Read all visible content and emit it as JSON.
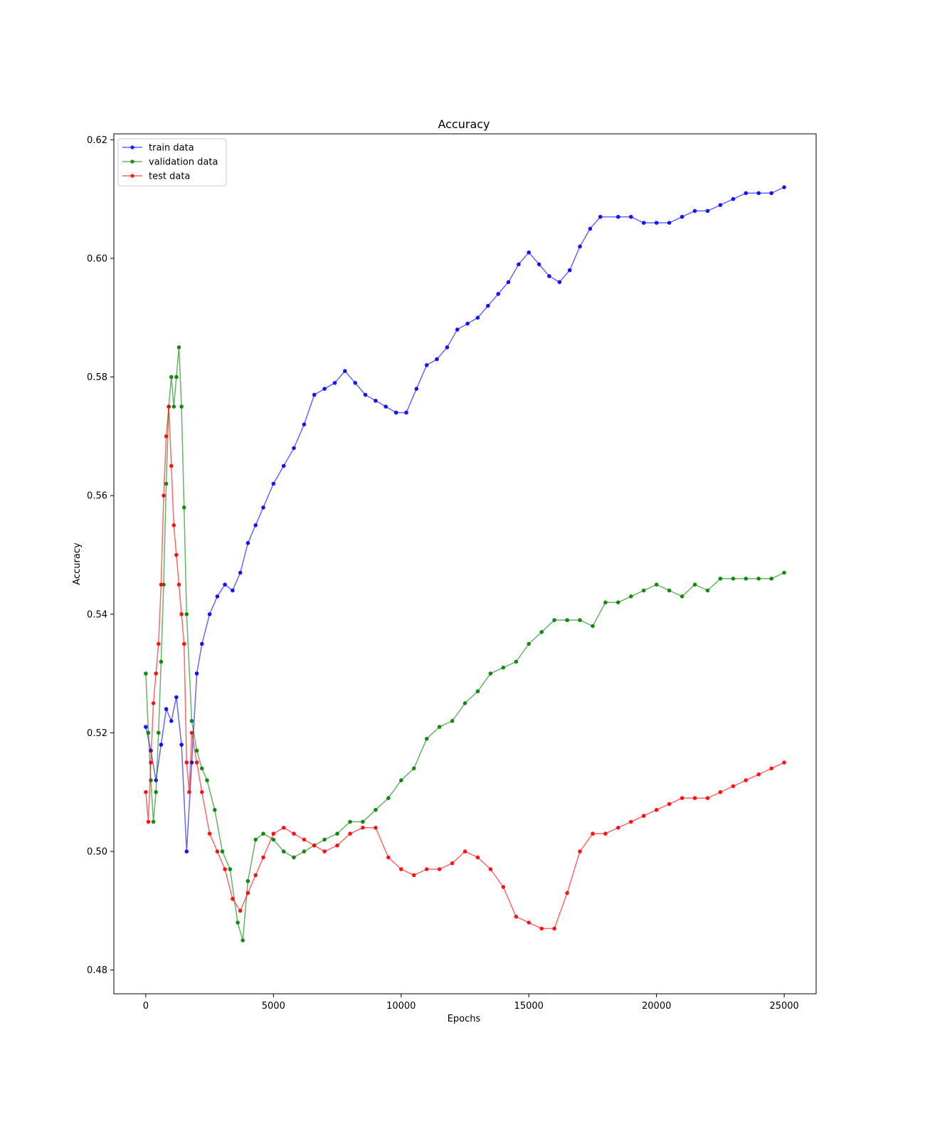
{
  "chart_data": {
    "type": "line",
    "title": "Accuracy",
    "xlabel": "Epochs",
    "ylabel": "Accuracy",
    "xlim": [
      -1250,
      26250
    ],
    "ylim": [
      0.476,
      0.621
    ],
    "xticks": [
      0,
      5000,
      10000,
      15000,
      20000,
      25000
    ],
    "xtick_labels": [
      "0",
      "5000",
      "10000",
      "15000",
      "20000",
      "25000"
    ],
    "yticks": [
      0.48,
      0.5,
      0.52,
      0.54,
      0.56,
      0.58,
      0.6,
      0.62
    ],
    "ytick_labels": [
      "0.48",
      "0.50",
      "0.52",
      "0.54",
      "0.56",
      "0.58",
      "0.60",
      "0.62"
    ],
    "grid": false,
    "legend_position": "upper-left",
    "series": [
      {
        "name": "train data",
        "color": "#0000ff",
        "x": [
          0,
          200,
          400,
          600,
          800,
          1000,
          1200,
          1400,
          1600,
          1800,
          2000,
          2200,
          2500,
          2800,
          3100,
          3400,
          3700,
          4000,
          4300,
          4600,
          5000,
          5400,
          5800,
          6200,
          6600,
          7000,
          7400,
          7800,
          8200,
          8600,
          9000,
          9400,
          9800,
          10200,
          10600,
          11000,
          11400,
          11800,
          12200,
          12600,
          13000,
          13400,
          13800,
          14200,
          14600,
          15000,
          15400,
          15800,
          16200,
          16600,
          17000,
          17400,
          17800,
          18500,
          19000,
          19500,
          20000,
          20500,
          21000,
          21500,
          22000,
          22500,
          23000,
          23500,
          24000,
          24500,
          25000
        ],
        "y": [
          0.521,
          0.517,
          0.512,
          0.518,
          0.524,
          0.522,
          0.526,
          0.518,
          0.5,
          0.515,
          0.53,
          0.535,
          0.54,
          0.543,
          0.545,
          0.544,
          0.547,
          0.552,
          0.555,
          0.558,
          0.562,
          0.565,
          0.568,
          0.572,
          0.577,
          0.578,
          0.579,
          0.581,
          0.579,
          0.577,
          0.576,
          0.575,
          0.574,
          0.574,
          0.578,
          0.582,
          0.583,
          0.585,
          0.588,
          0.589,
          0.59,
          0.592,
          0.594,
          0.596,
          0.599,
          0.601,
          0.599,
          0.597,
          0.596,
          0.598,
          0.602,
          0.605,
          0.607,
          0.607,
          0.607,
          0.606,
          0.606,
          0.606,
          0.607,
          0.608,
          0.608,
          0.609,
          0.61,
          0.611,
          0.611,
          0.611,
          0.612
        ]
      },
      {
        "name": "validation data",
        "color": "#008000",
        "x": [
          0,
          100,
          200,
          300,
          400,
          500,
          600,
          700,
          800,
          900,
          1000,
          1100,
          1200,
          1300,
          1400,
          1500,
          1600,
          1800,
          2000,
          2200,
          2400,
          2700,
          3000,
          3300,
          3600,
          3800,
          4000,
          4300,
          4600,
          5000,
          5400,
          5800,
          6200,
          6600,
          7000,
          7500,
          8000,
          8500,
          9000,
          9500,
          10000,
          10500,
          11000,
          11500,
          12000,
          12500,
          13000,
          13500,
          14000,
          14500,
          15000,
          15500,
          16000,
          16500,
          17000,
          17500,
          18000,
          18500,
          19000,
          19500,
          20000,
          20500,
          21000,
          21500,
          22000,
          22500,
          23000,
          23500,
          24000,
          24500,
          25000
        ],
        "y": [
          0.53,
          0.52,
          0.512,
          0.505,
          0.51,
          0.52,
          0.532,
          0.545,
          0.562,
          0.575,
          0.58,
          0.575,
          0.58,
          0.585,
          0.575,
          0.558,
          0.54,
          0.522,
          0.517,
          0.514,
          0.512,
          0.507,
          0.5,
          0.497,
          0.488,
          0.485,
          0.495,
          0.502,
          0.503,
          0.502,
          0.5,
          0.499,
          0.5,
          0.501,
          0.502,
          0.503,
          0.505,
          0.505,
          0.507,
          0.509,
          0.512,
          0.514,
          0.519,
          0.521,
          0.522,
          0.525,
          0.527,
          0.53,
          0.531,
          0.532,
          0.535,
          0.537,
          0.539,
          0.539,
          0.539,
          0.538,
          0.542,
          0.542,
          0.543,
          0.544,
          0.545,
          0.544,
          0.543,
          0.545,
          0.544,
          0.546,
          0.546,
          0.546,
          0.546,
          0.546,
          0.547
        ]
      },
      {
        "name": "test data",
        "color": "#ff0000",
        "x": [
          0,
          100,
          200,
          300,
          400,
          500,
          600,
          700,
          800,
          900,
          1000,
          1100,
          1200,
          1300,
          1400,
          1500,
          1600,
          1700,
          1800,
          2000,
          2200,
          2500,
          2800,
          3100,
          3400,
          3700,
          4000,
          4300,
          4600,
          5000,
          5400,
          5800,
          6200,
          6600,
          7000,
          7500,
          8000,
          8500,
          9000,
          9500,
          10000,
          10500,
          11000,
          11500,
          12000,
          12500,
          13000,
          13500,
          14000,
          14500,
          15000,
          15500,
          16000,
          16500,
          17000,
          17500,
          18000,
          18500,
          19000,
          19500,
          20000,
          20500,
          21000,
          21500,
          22000,
          22500,
          23000,
          23500,
          24000,
          24500,
          25000
        ],
        "y": [
          0.51,
          0.505,
          0.515,
          0.525,
          0.53,
          0.535,
          0.545,
          0.56,
          0.57,
          0.575,
          0.565,
          0.555,
          0.55,
          0.545,
          0.54,
          0.535,
          0.515,
          0.51,
          0.52,
          0.515,
          0.51,
          0.503,
          0.5,
          0.497,
          0.492,
          0.49,
          0.493,
          0.496,
          0.499,
          0.503,
          0.504,
          0.503,
          0.502,
          0.501,
          0.5,
          0.501,
          0.503,
          0.504,
          0.504,
          0.499,
          0.497,
          0.496,
          0.497,
          0.497,
          0.498,
          0.5,
          0.499,
          0.497,
          0.494,
          0.489,
          0.488,
          0.487,
          0.487,
          0.493,
          0.5,
          0.503,
          0.503,
          0.504,
          0.505,
          0.506,
          0.507,
          0.508,
          0.509,
          0.509,
          0.509,
          0.51,
          0.511,
          0.512,
          0.513,
          0.514,
          0.515
        ]
      }
    ]
  }
}
